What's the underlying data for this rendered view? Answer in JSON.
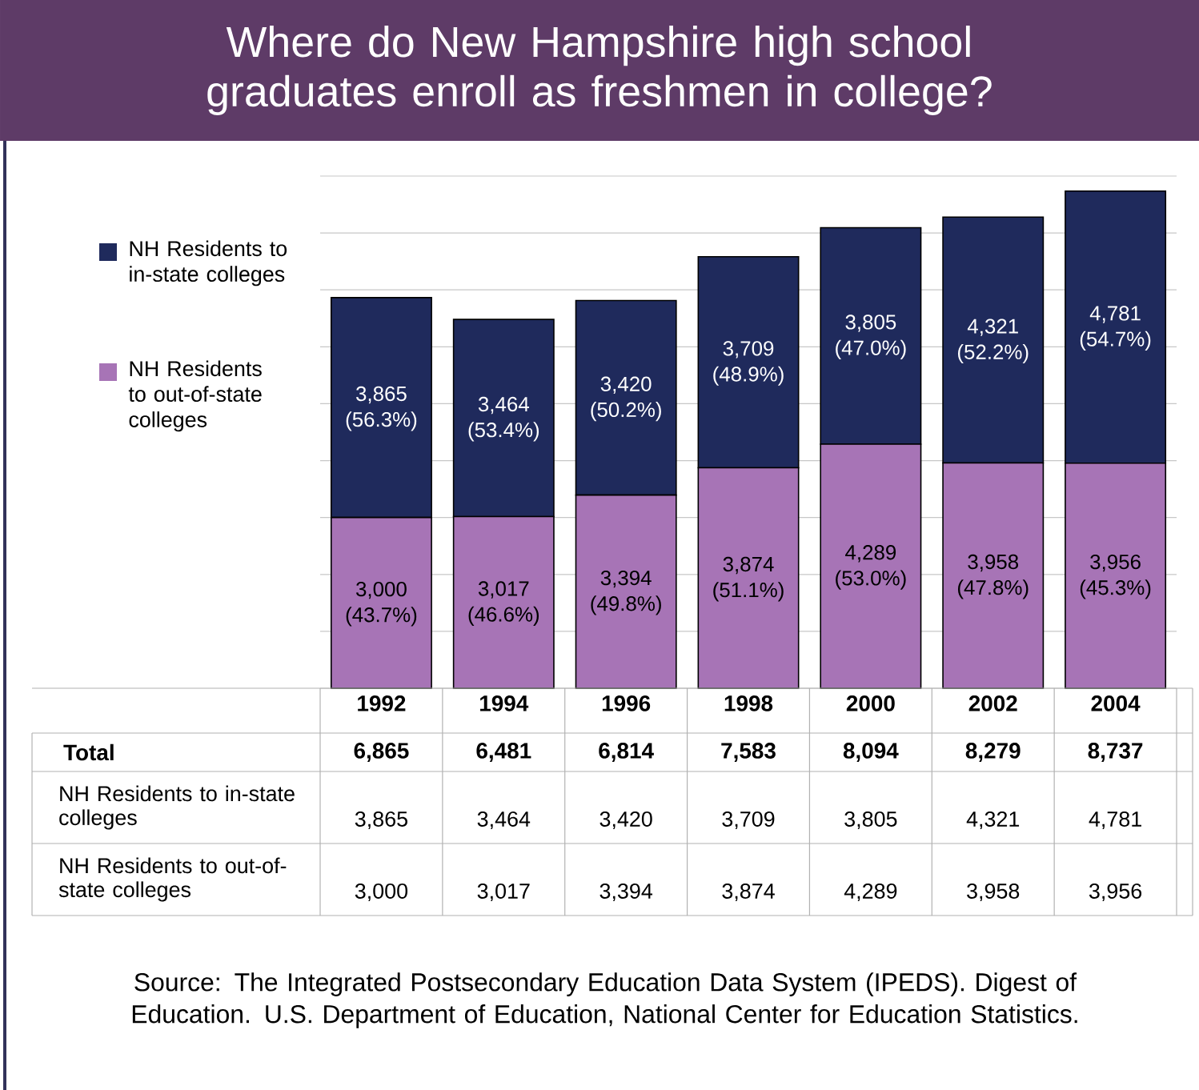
{
  "chart_data": {
    "type": "bar",
    "title": "Where do New Hampshire high school graduates enroll as freshmen in college?",
    "categories": [
      "1992",
      "1994",
      "1996",
      "1998",
      "2000",
      "2002",
      "2004"
    ],
    "stacked": true,
    "series": [
      {
        "name": "NH Residents to out-of-state colleges",
        "color": "#a774b6",
        "values": [
          3000,
          3017,
          3394,
          3874,
          4289,
          3958,
          3956
        ],
        "value_labels": [
          "3,000",
          "3,017",
          "3,394",
          "3,874",
          "4,289",
          "3,958",
          "3,956"
        ]
      },
      {
        "name": "NH Residents to in-state colleges",
        "color": "#1f2a5c",
        "values": [
          3865,
          3464,
          3420,
          3709,
          3805,
          4321,
          4781
        ],
        "value_labels": [
          "3,865",
          "3,464",
          "3,420",
          "3,709",
          "3,805",
          "4,321",
          "4,781"
        ]
      }
    ],
    "totals": [
      "6,865",
      "6,481",
      "6,814",
      "7,583",
      "8,094",
      "8,279",
      "8,737"
    ],
    "ylim": [
      0,
      9000
    ],
    "yticks": [
      {
        "value": 0,
        "label": null
      },
      {
        "value": 1000,
        "label": null
      },
      {
        "value": 2000,
        "label": null
      },
      {
        "value": 3000,
        "label": null
      },
      {
        "value": 4000,
        "label": null
      },
      {
        "value": 5000,
        "label": null
      },
      {
        "value": 6000,
        "label": null
      },
      {
        "value": 7000,
        "label": null
      },
      {
        "value": 8000,
        "label": null
      },
      {
        "value": 9000,
        "label": null
      }
    ],
    "grid": "y",
    "tick_labels": "x",
    "legend": "left",
    "annotations": [
      "Total",
      "Source: The Integrated Postsecondary Education Data System (IPEDS). Digest of Education. U.S. Department of Education, National Center for Education Statistics.",
      "(43.7%)",
      "(46.6%)",
      "(49.8%)",
      "(51.1%)",
      "(53.0%)",
      "(47.8%)",
      "(45.3%)",
      "(56.3%)",
      "(53.4%)",
      "(50.2%)",
      "(48.9%)",
      "(47.0%)",
      "(52.2%)",
      "(54.7%)"
    ]
  }
}
